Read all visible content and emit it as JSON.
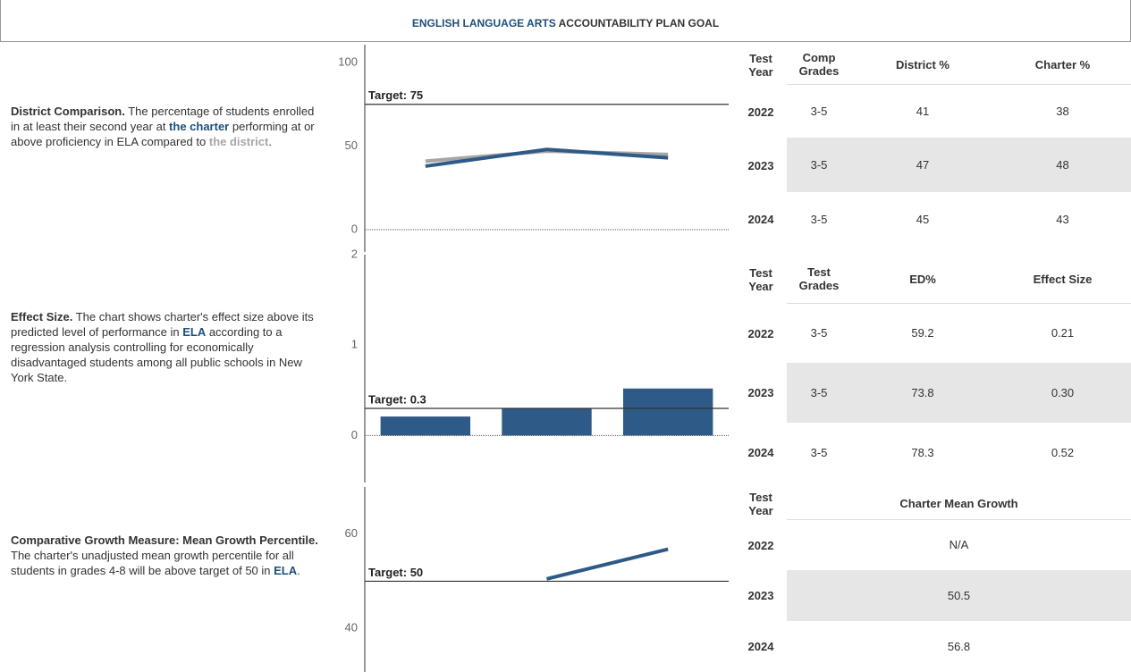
{
  "header": {
    "title": [
      {
        "text": "ENGLISH LANGUAGE ARTS",
        "style": "blue"
      },
      {
        "text": " ACCOUNTABILITY PLAN GOAL",
        "style": "dark"
      }
    ]
  },
  "sections": [
    {
      "description": [
        {
          "text": "District Comparison.",
          "style": "bold"
        },
        {
          "text": " The percentage of students enrolled in at least their second year at ",
          "style": "plain"
        },
        {
          "text": "the charter",
          "style": "blue"
        },
        {
          "text": " performing at or above proficiency in ELA compared to ",
          "style": "plain"
        },
        {
          "text": "the district",
          "style": "gray"
        },
        {
          "text": ".",
          "style": "plain"
        }
      ],
      "chart": {
        "type": "line",
        "ylim": [
          0,
          100
        ],
        "yticks": [
          0,
          50,
          100
        ],
        "target": {
          "value": 75,
          "label": "Target: 75"
        },
        "series": [
          {
            "color": "#a6a6a6",
            "values": [
              41,
              47,
              45
            ]
          },
          {
            "color": "#2e5a87",
            "values": [
              38,
              48,
              43
            ]
          }
        ]
      },
      "table": {
        "headers": [
          "Test Year",
          "Comp Grades",
          "District %",
          "Charter %"
        ],
        "rows": [
          [
            "2022",
            "3-5",
            "41",
            "38"
          ],
          [
            "2023",
            "3-5",
            "47",
            "48"
          ],
          [
            "2024",
            "3-5",
            "45",
            "43"
          ]
        ]
      }
    },
    {
      "description": [
        {
          "text": "Effect Size.",
          "style": "bold"
        },
        {
          "text": " The chart shows charter's effect size above its predicted level of performance in ",
          "style": "plain"
        },
        {
          "text": "ELA",
          "style": "blue"
        },
        {
          "text": " according to a regression analysis controlling for economically disadvantaged students among all public schools in New York State.",
          "style": "plain"
        }
      ],
      "chart": {
        "type": "bar",
        "ylim": [
          -0.52,
          2
        ],
        "yticks": [
          0,
          1,
          2
        ],
        "target": {
          "value": 0.3,
          "label": "Target: 0.3"
        },
        "series": [
          {
            "color": "#2e5a87",
            "values": [
              0.21,
              0.3,
              0.52
            ]
          }
        ]
      },
      "table": {
        "headers": [
          "Test Year",
          "Test Grades",
          "ED%",
          "Effect Size"
        ],
        "rows": [
          [
            "2022",
            "3-5",
            "59.2",
            "0.21"
          ],
          [
            "2023",
            "3-5",
            "73.8",
            "0.30"
          ],
          [
            "2024",
            "3-5",
            "78.3",
            "0.52"
          ]
        ]
      }
    },
    {
      "description": [
        {
          "text": "Comparative Growth Measure: Mean Growth Percentile.",
          "style": "bold"
        },
        {
          "text": "  The charter's unadjusted mean growth percentile for all students in grades 4-8 will be above target of 50 in ",
          "style": "plain"
        },
        {
          "text": "ELA",
          "style": "blue"
        },
        {
          "text": ".",
          "style": "plain"
        }
      ],
      "chart": {
        "type": "line",
        "ylim": [
          31.5,
          70
        ],
        "yticks": [
          40,
          60
        ],
        "target": {
          "value": 50,
          "label": "Target: 50"
        },
        "series": [
          {
            "color": "#2e5a87",
            "values": [
              null,
              50.5,
              56.8
            ]
          }
        ]
      },
      "table": {
        "headers": [
          "Test Year",
          "Charter Mean Growth"
        ],
        "rows": [
          [
            "2022",
            "N/A"
          ],
          [
            "2023",
            "50.5"
          ],
          [
            "2024",
            "56.8"
          ]
        ]
      }
    }
  ]
}
